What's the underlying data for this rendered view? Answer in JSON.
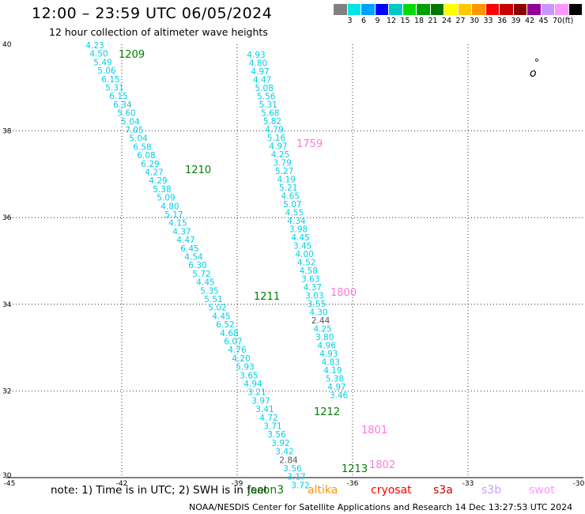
{
  "header": {
    "title": "12:00 – 23:59 UTC 06/05/2024",
    "subtitle": "12 hour collection of altimeter wave heights"
  },
  "legend": {
    "unit": "(ft)",
    "colors": [
      "#808080",
      "#00e5e5",
      "#00a0ff",
      "#0000ff",
      "#00c8c8",
      "#00dc00",
      "#00a000",
      "#007800",
      "#ffff00",
      "#ffc800",
      "#ff9600",
      "#ff0000",
      "#c80000",
      "#8b0000",
      "#960096",
      "#c896ff",
      "#ff96ff",
      "#000000"
    ],
    "labels": [
      "3",
      "6",
      "9",
      "12",
      "15",
      "18",
      "21",
      "24",
      "27",
      "30",
      "33",
      "36",
      "39",
      "42",
      "45",
      "70"
    ]
  },
  "axes": {
    "x_ticks": [
      "-45",
      "-42",
      "-39",
      "-36",
      "-33",
      "-30"
    ],
    "y_ticks": [
      "40",
      "38",
      "36",
      "34",
      "32",
      "30"
    ]
  },
  "tracks": [
    {
      "color": "#00cfe8",
      "values": [
        "4.23",
        "4.50",
        "5.49",
        "5.06",
        "6.15",
        "5.31",
        "6.15",
        "6.34",
        "5.60",
        "5.04",
        "7.05",
        "5.04",
        "6.58",
        "6.08",
        "6.29",
        "4.27",
        "4.29",
        "5.38",
        "5.09",
        "4.80",
        "5.17",
        "4.15",
        "4.37",
        "4.47",
        "6.45",
        "4.54",
        "6.30",
        "5.72",
        "4.45",
        "5.35",
        "5.51",
        "5.02",
        "4.45",
        "6.52",
        "4.68",
        "6.07",
        "4.76",
        "4.20",
        "5.93",
        "3.65",
        "4.94",
        "3.21",
        "3.97",
        "3.41",
        "4.72",
        "3.71",
        "3.56",
        "3.92",
        "3.42",
        "2.84",
        "3.56",
        "3.17",
        "3.72"
      ]
    },
    {
      "color": "#00cfe8",
      "values": [
        "4.93",
        "4.80",
        "4.97",
        "4.47",
        "5.08",
        "5.56",
        "5.31",
        "5.68",
        "5.82",
        "4.79",
        "5.16",
        "4.97",
        "4.25",
        "3.79",
        "5.27",
        "4.19",
        "5.21",
        "4.65",
        "5.07",
        "4.55",
        "4.34",
        "3.98",
        "4.45",
        "3.45",
        "4.00",
        "4.52",
        "4.58",
        "3.63",
        "4.37",
        "3.03",
        "3.55",
        "4.30",
        "2.44",
        "4.25",
        "3.80",
        "4.96",
        "4.93",
        "4.83",
        "4.19",
        "5.38",
        "4.97",
        "3.46"
      ]
    }
  ],
  "pass_labels": [
    {
      "text": "1209",
      "color": "#008000"
    },
    {
      "text": "1210",
      "color": "#008000"
    },
    {
      "text": "1211",
      "color": "#008000"
    },
    {
      "text": "1212",
      "color": "#008000"
    },
    {
      "text": "1213",
      "color": "#008000"
    },
    {
      "text": "1759",
      "color": "#ff77dd"
    },
    {
      "text": "1800",
      "color": "#ff77dd"
    },
    {
      "text": "1801",
      "color": "#ff77dd"
    },
    {
      "text": "1802",
      "color": "#ff77dd"
    }
  ],
  "island_label": "o",
  "note": "note: 1) Time is in UTC; 2) SWH is in feet",
  "satellites": [
    {
      "name": "jason3",
      "color": "#008000"
    },
    {
      "name": "altika",
      "color": "#ff9600"
    },
    {
      "name": "cryosat",
      "color": "#ff0000"
    },
    {
      "name": "s3a",
      "color": "#c80000"
    },
    {
      "name": "s3b",
      "color": "#c8a0ff"
    },
    {
      "name": "swot",
      "color": "#ff96ff"
    }
  ],
  "credit": "NOAA/NESDIS Center for Satellite Applications and Research    14 Dec 13:27:53 UTC 2024"
}
